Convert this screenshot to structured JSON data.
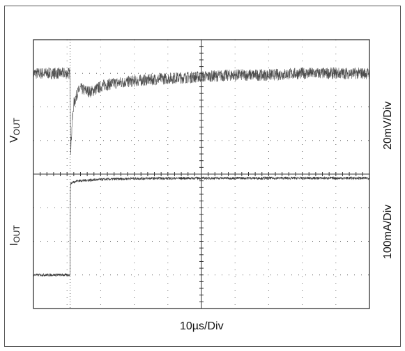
{
  "chart_data": {
    "type": "line",
    "title": "",
    "xlabel": "10µs/Div",
    "divisions": {
      "x": 10,
      "y": 8
    },
    "grid": true,
    "x_unit": "µs",
    "x_per_div": 10,
    "xlim": [
      0,
      100
    ],
    "axis_labels": {
      "top": {
        "main": "V",
        "sub": "OUT"
      },
      "bottom": {
        "main": "I",
        "sub": "OUT"
      }
    },
    "scale_labels": {
      "top": "20mV/Div",
      "bottom": "100mA/Div"
    },
    "series": [
      {
        "name": "VOUT",
        "unit": "mV",
        "per_div": 20,
        "x": [
          0,
          10.9,
          11.1,
          11.5,
          12,
          13,
          14,
          15,
          17,
          19,
          21,
          24,
          28,
          33,
          40,
          50,
          60,
          70,
          80,
          90,
          100
        ],
        "value": [
          0,
          0,
          -45,
          -30,
          -18,
          -12,
          -9,
          -10,
          -11,
          -9,
          -7,
          -6,
          -5,
          -4,
          -3,
          -2,
          -1,
          -1,
          0,
          0,
          0
        ],
        "noise_pp_mV": 7,
        "color": "#3a3a3a"
      },
      {
        "name": "IOUT",
        "unit": "mA",
        "per_div": 100,
        "x": [
          0,
          10.9,
          11.0,
          11.5,
          13,
          20,
          30,
          50,
          70,
          100
        ],
        "value": [
          0,
          0,
          270,
          275,
          280,
          284,
          287,
          288,
          288,
          288
        ],
        "noise_pp_mA": 8,
        "color": "#222222"
      }
    ],
    "colors": {
      "grid": "#666666",
      "border": "#222222",
      "noise": "#7a9a7a"
    }
  }
}
